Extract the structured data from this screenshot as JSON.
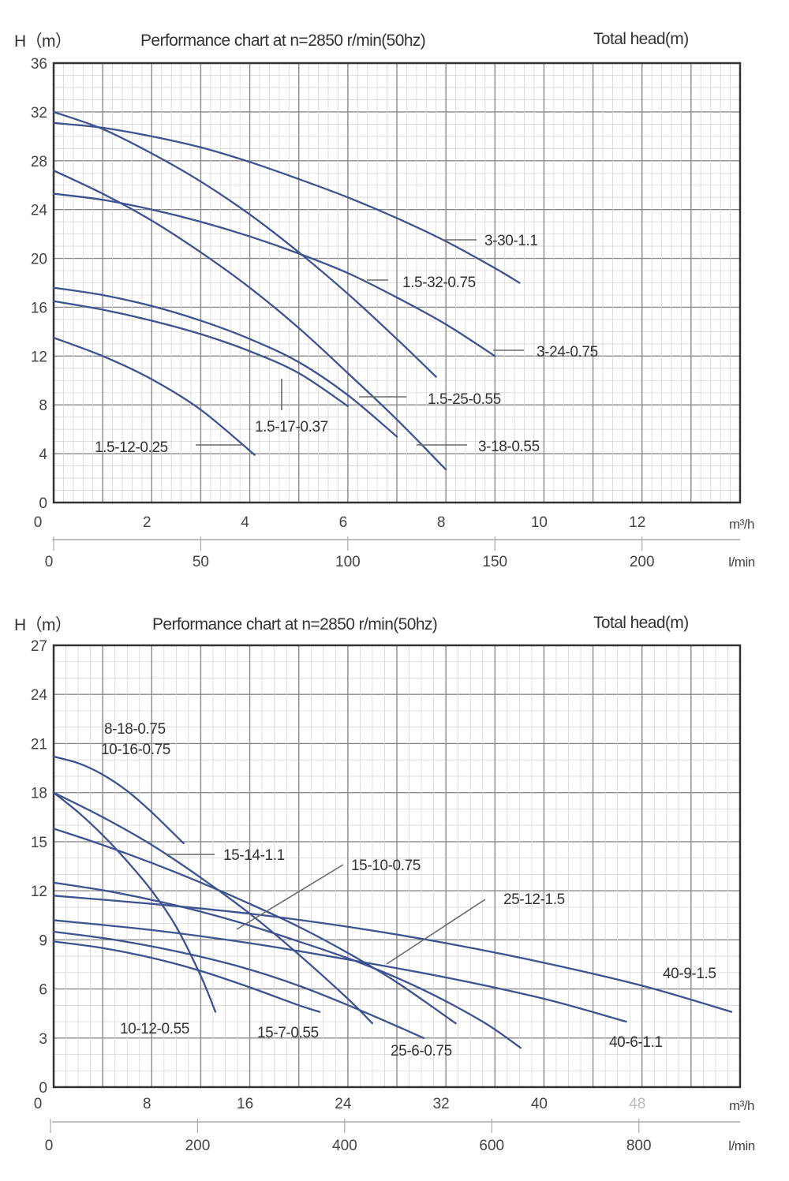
{
  "chart_data": [
    {
      "type": "line",
      "title": "Performance chart at n=2850 r/min(50hz)",
      "ylabel": "H（m）",
      "right_label": "Total head(m)",
      "xlabel": "m³/h",
      "xlabel2": "l/min",
      "xlim": [
        0,
        14
      ],
      "ylim": [
        0,
        36
      ],
      "x_ticks": [
        0,
        2,
        4,
        6,
        8,
        10,
        12
      ],
      "x_tick_labels": [
        "0",
        "2",
        "4",
        "6",
        "8",
        "10",
        "12"
      ],
      "y_ticks": [
        0,
        4,
        8,
        12,
        16,
        20,
        24,
        28,
        32,
        36
      ],
      "y_tick_labels": [
        "0",
        "4",
        "8",
        "12",
        "16",
        "20",
        "24",
        "28",
        "32",
        "36"
      ],
      "x2_ticks_lmin": [
        0,
        50,
        100,
        150,
        200
      ],
      "x2_tick_labels": [
        "0",
        "50",
        "100",
        "150",
        "200"
      ],
      "grid": true,
      "series": [
        {
          "name": "3-30-1.1",
          "x": [
            0,
            1,
            2,
            3,
            4,
            5,
            6,
            7,
            8,
            9,
            9.5
          ],
          "y": [
            31.1,
            30.7,
            30.0,
            29.1,
            27.9,
            26.5,
            25.0,
            23.3,
            21.4,
            19.2,
            18.0
          ]
        },
        {
          "name": "1.5-32-0.75",
          "x": [
            0,
            1,
            2,
            3,
            4,
            5,
            6,
            7,
            7.8
          ],
          "y": [
            32.0,
            30.6,
            28.6,
            26.3,
            23.6,
            20.5,
            17.1,
            13.4,
            10.3
          ]
        },
        {
          "name": "3-24-0.75",
          "x": [
            0,
            1,
            2,
            3,
            4,
            5,
            6,
            7,
            8,
            9
          ],
          "y": [
            25.3,
            24.8,
            24.0,
            23.0,
            21.8,
            20.4,
            18.8,
            16.8,
            14.6,
            12.0
          ]
        },
        {
          "name": "3-18-0.55",
          "x": [
            0,
            1,
            2,
            3,
            4,
            5,
            6,
            7,
            8
          ],
          "y": [
            27.2,
            25.3,
            23.1,
            20.5,
            17.6,
            14.3,
            10.6,
            6.8,
            2.7
          ]
        },
        {
          "name": "1.5-25-0.55",
          "x": [
            0,
            1,
            2,
            3,
            4,
            5,
            6,
            7
          ],
          "y": [
            17.6,
            17.0,
            16.1,
            14.9,
            13.4,
            11.5,
            8.8,
            5.4
          ]
        },
        {
          "name": "1.5-17-0.37",
          "x": [
            0,
            1,
            2,
            3,
            4,
            5,
            6
          ],
          "y": [
            16.5,
            15.8,
            14.9,
            13.8,
            12.4,
            10.6,
            7.9
          ]
        },
        {
          "name": "1.5-12-0.25",
          "x": [
            0,
            1,
            2,
            3,
            4.1
          ],
          "y": [
            13.5,
            12.0,
            10.1,
            7.6,
            3.9
          ]
        }
      ],
      "annotations": [
        {
          "text": "3-30-1.1",
          "points_to": [
            8,
            21.4
          ]
        },
        {
          "text": "1.5-32-0.75",
          "points_to": [
            6.4,
            18.1
          ]
        },
        {
          "text": "3-24-0.75",
          "points_to": [
            9,
            12.0
          ]
        },
        {
          "text": "1.5-25-0.55",
          "points_to": [
            6.3,
            8.6
          ]
        },
        {
          "text": "1.5-17-0.37",
          "points_to": [
            4.6,
            10.6
          ]
        },
        {
          "text": "1.5-12-0.25",
          "points_to": [
            4.0,
            4.5
          ]
        },
        {
          "text": "3-18-0.55",
          "points_to": [
            7.5,
            4.6
          ]
        }
      ]
    },
    {
      "type": "line",
      "title": "Performance chart at n=2850 r/min(50hz)",
      "ylabel": "H（m）",
      "right_label": "Total head(m)",
      "xlabel": "m³/h",
      "xlabel2": "l/min",
      "xlim": [
        0,
        56
      ],
      "ylim": [
        0,
        27
      ],
      "x_ticks": [
        0,
        8,
        16,
        24,
        32,
        40,
        48
      ],
      "x_tick_labels": [
        "0",
        "8",
        "16",
        "24",
        "32",
        "40",
        "48"
      ],
      "y_ticks": [
        0,
        3,
        6,
        9,
        12,
        15,
        18,
        21,
        24,
        27
      ],
      "y_tick_labels": [
        "0",
        "3",
        "6",
        "9",
        "12",
        "15",
        "18",
        "21",
        "24",
        "27"
      ],
      "x2_ticks_lmin": [
        0,
        200,
        400,
        600,
        800
      ],
      "x2_tick_labels": [
        "0",
        "200",
        "400",
        "600",
        "800"
      ],
      "grid": true,
      "series": [
        {
          "name": "8-18-0.75 / 10-16-0.75",
          "x": [
            0,
            2,
            4,
            6,
            8,
            10.6
          ],
          "y": [
            20.2,
            19.8,
            19.1,
            18.1,
            16.8,
            14.9
          ]
        },
        {
          "name": "10-12-0.55",
          "x": [
            0,
            2,
            4,
            6,
            8,
            10,
            12,
            13.2
          ],
          "y": [
            18.0,
            16.8,
            15.4,
            13.8,
            12.0,
            9.8,
            6.8,
            4.6
          ]
        },
        {
          "name": "15-14-1.1",
          "x": [
            0,
            4,
            8,
            12,
            16,
            20,
            24,
            26
          ],
          "y": [
            18.0,
            16.5,
            14.8,
            12.8,
            10.6,
            8.1,
            5.4,
            3.9
          ]
        },
        {
          "name": "15-10-0.75",
          "x": [
            0,
            4,
            8,
            12,
            16,
            20,
            24,
            28,
            32.8
          ],
          "y": [
            15.8,
            14.8,
            13.7,
            12.5,
            11.2,
            9.8,
            8.2,
            6.4,
            3.9
          ]
        },
        {
          "name": "25-12-1.5",
          "x": [
            0,
            5,
            10,
            15,
            20,
            25,
            30,
            35,
            38.1
          ],
          "y": [
            12.5,
            11.9,
            11.1,
            10.1,
            8.9,
            7.6,
            6.0,
            4.0,
            2.4
          ]
        },
        {
          "name": "40-9-1.5",
          "x": [
            0,
            8,
            16,
            24,
            32,
            40,
            48,
            55.3
          ],
          "y": [
            11.7,
            11.2,
            10.6,
            9.8,
            8.8,
            7.6,
            6.2,
            4.6
          ]
        },
        {
          "name": "40-6-1.1",
          "x": [
            0,
            8,
            16,
            24,
            32,
            40,
            46.7
          ],
          "y": [
            10.2,
            9.6,
            8.8,
            7.8,
            6.7,
            5.4,
            4.0
          ]
        },
        {
          "name": "25-6-0.75",
          "x": [
            0,
            5,
            10,
            15,
            20,
            25,
            30.2
          ],
          "y": [
            9.5,
            9.0,
            8.3,
            7.4,
            6.2,
            4.7,
            3.0
          ]
        },
        {
          "name": "15-7-0.55",
          "x": [
            0,
            4,
            8,
            12,
            16,
            20,
            21.7
          ],
          "y": [
            8.9,
            8.5,
            7.9,
            7.1,
            6.1,
            5.0,
            4.6
          ]
        }
      ],
      "annotations": [
        {
          "text": "8-18-0.75",
          "points_to": null
        },
        {
          "text": "10-16-0.75",
          "points_to": null
        },
        {
          "text": "15-14-1.1",
          "points_to": [
            9.5,
            14.0
          ]
        },
        {
          "text": "15-10-0.75",
          "points_to": [
            15,
            9.5
          ]
        },
        {
          "text": "25-12-1.5",
          "points_to": [
            27,
            7.0
          ]
        },
        {
          "text": "40-9-1.5",
          "points_to": null
        },
        {
          "text": "40-6-1.1",
          "points_to": null
        },
        {
          "text": "10-12-0.55",
          "points_to": null
        },
        {
          "text": "15-7-0.55",
          "points_to": null
        },
        {
          "text": "25-6-0.75",
          "points_to": null
        }
      ]
    }
  ],
  "colors": {
    "curve": "#3d5291",
    "grid_major": "#8a8a8a",
    "grid_minor": "#d6d6d6",
    "frame": "#333333",
    "leader": "#6a6a6a",
    "faint_tick": "#bbbbbb"
  }
}
